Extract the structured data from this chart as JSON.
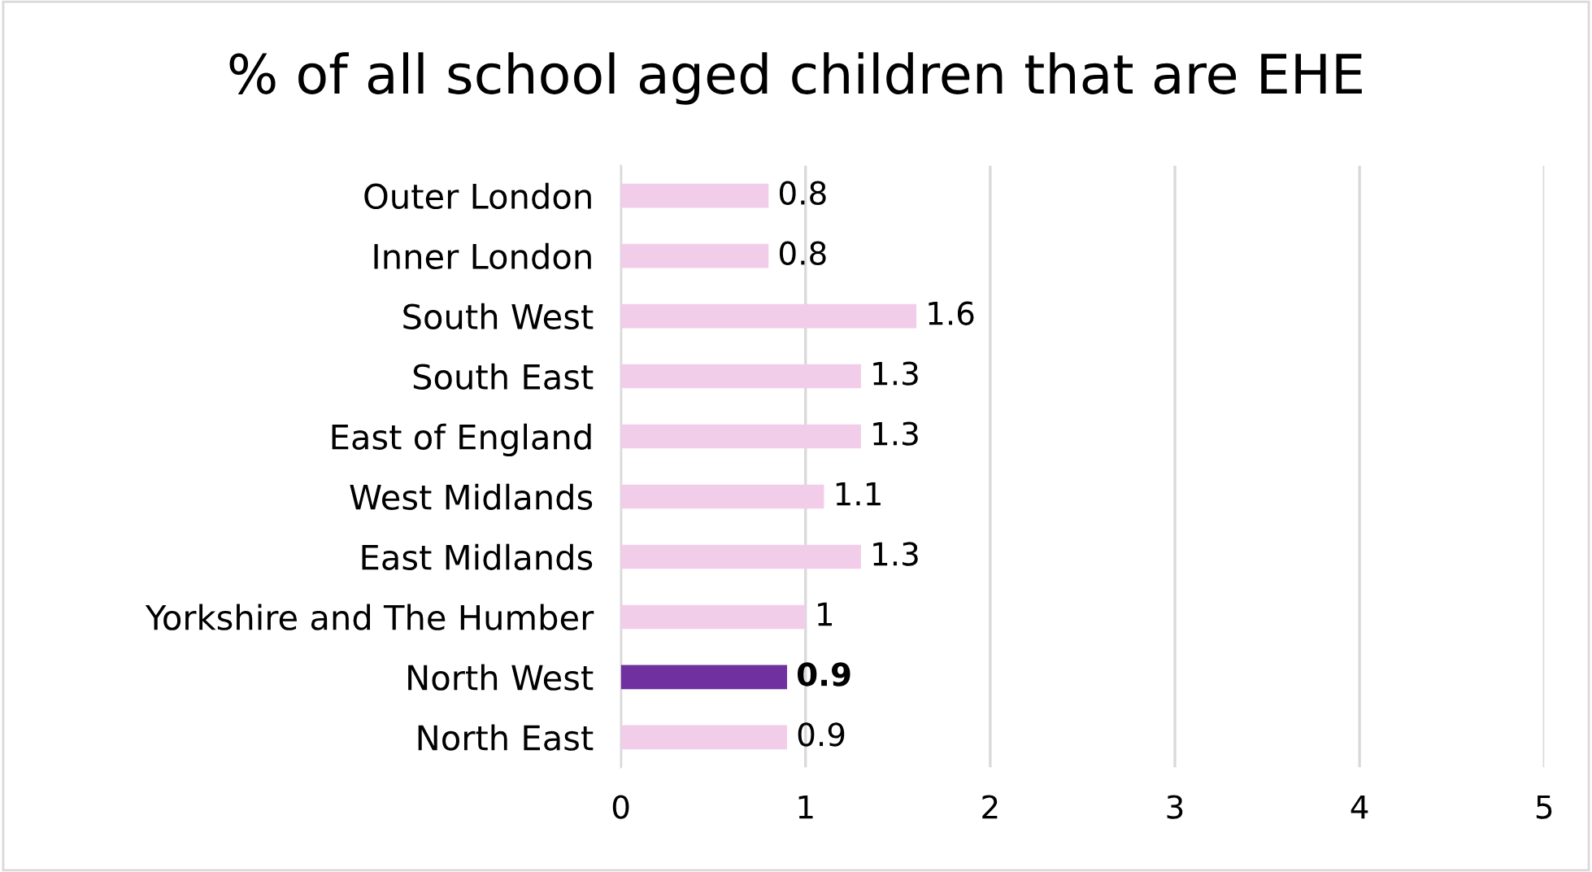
{
  "chart_data": {
    "type": "bar",
    "orientation": "horizontal",
    "title": "% of all school aged children that are EHE",
    "categories": [
      "Outer London",
      "Inner London",
      "South West",
      "South East",
      "East of England",
      "West Midlands",
      "East Midlands",
      "Yorkshire and The Humber",
      "North West",
      "North East"
    ],
    "values": [
      0.8,
      0.8,
      1.6,
      1.3,
      1.3,
      1.1,
      1.3,
      1,
      0.9,
      0.9
    ],
    "colors": [
      "#f2cdea",
      "#f2cdea",
      "#f2cdea",
      "#f2cdea",
      "#f2cdea",
      "#f2cdea",
      "#f2cdea",
      "#f2cdea",
      "#7030a0",
      "#f2cdea"
    ],
    "xlim": [
      0,
      5
    ],
    "xticks": [
      0,
      1,
      2,
      3,
      4,
      5
    ],
    "grid": "x",
    "data_labels": true,
    "legend": false
  }
}
